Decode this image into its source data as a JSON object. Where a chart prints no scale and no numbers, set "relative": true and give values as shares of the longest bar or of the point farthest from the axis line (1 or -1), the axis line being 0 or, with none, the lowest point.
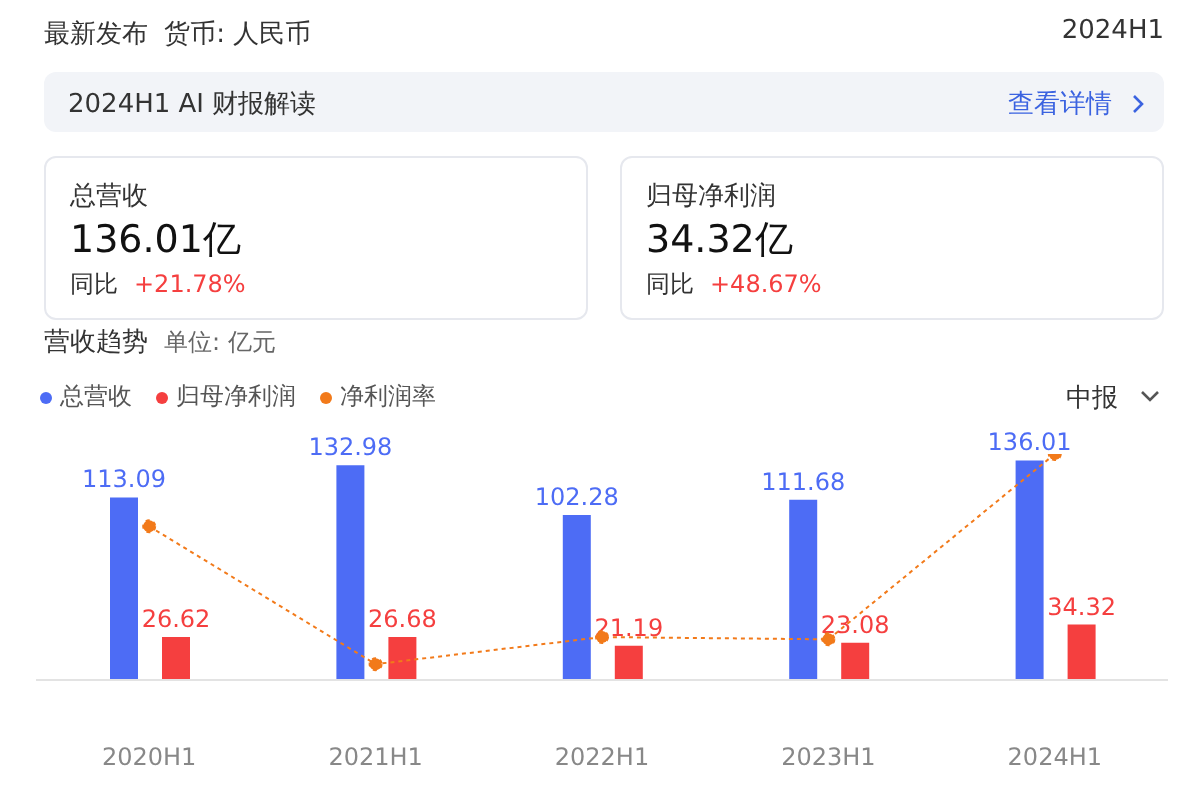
{
  "chart_data": [
    {
      "type": "bar",
      "title": "营收趋势",
      "subtitle": "单位: 亿元",
      "categories": [
        "2020H1",
        "2021H1",
        "2022H1",
        "2023H1",
        "2024H1"
      ],
      "series": [
        {
          "name": "总营收",
          "color": "#4d6cf5",
          "values": [
            113.09,
            132.98,
            102.28,
            111.68,
            136.01
          ]
        },
        {
          "name": "归母净利润",
          "color": "#f53f3f",
          "values": [
            26.62,
            26.68,
            21.19,
            23.08,
            34.32
          ]
        }
      ],
      "ylim": [
        0,
        140
      ],
      "data_labels": true,
      "legend": "top left",
      "tick_labels": "x",
      "annotations": [
        "最新发布",
        "货币: 人民币",
        "2024H1",
        "2024H1 AI 财报解读",
        "查看详情",
        "总营收",
        "136.01亿",
        "同比",
        "+21.78%",
        "归母净利润",
        "34.32亿",
        "同比",
        "+48.67%",
        "中报"
      ]
    },
    {
      "type": "line",
      "categories": [
        null,
        null,
        null,
        null,
        null
      ],
      "series": [
        {
          "name": "净利润率",
          "color": "#f27a1a",
          "values": [
            0.68,
            0.07,
            0.19,
            0.18,
            1
          ]
        }
      ],
      "relative": true,
      "legend": "top left",
      "marker": "circle",
      "line_style": "dotted",
      "tick_labels": false
    }
  ]
}
